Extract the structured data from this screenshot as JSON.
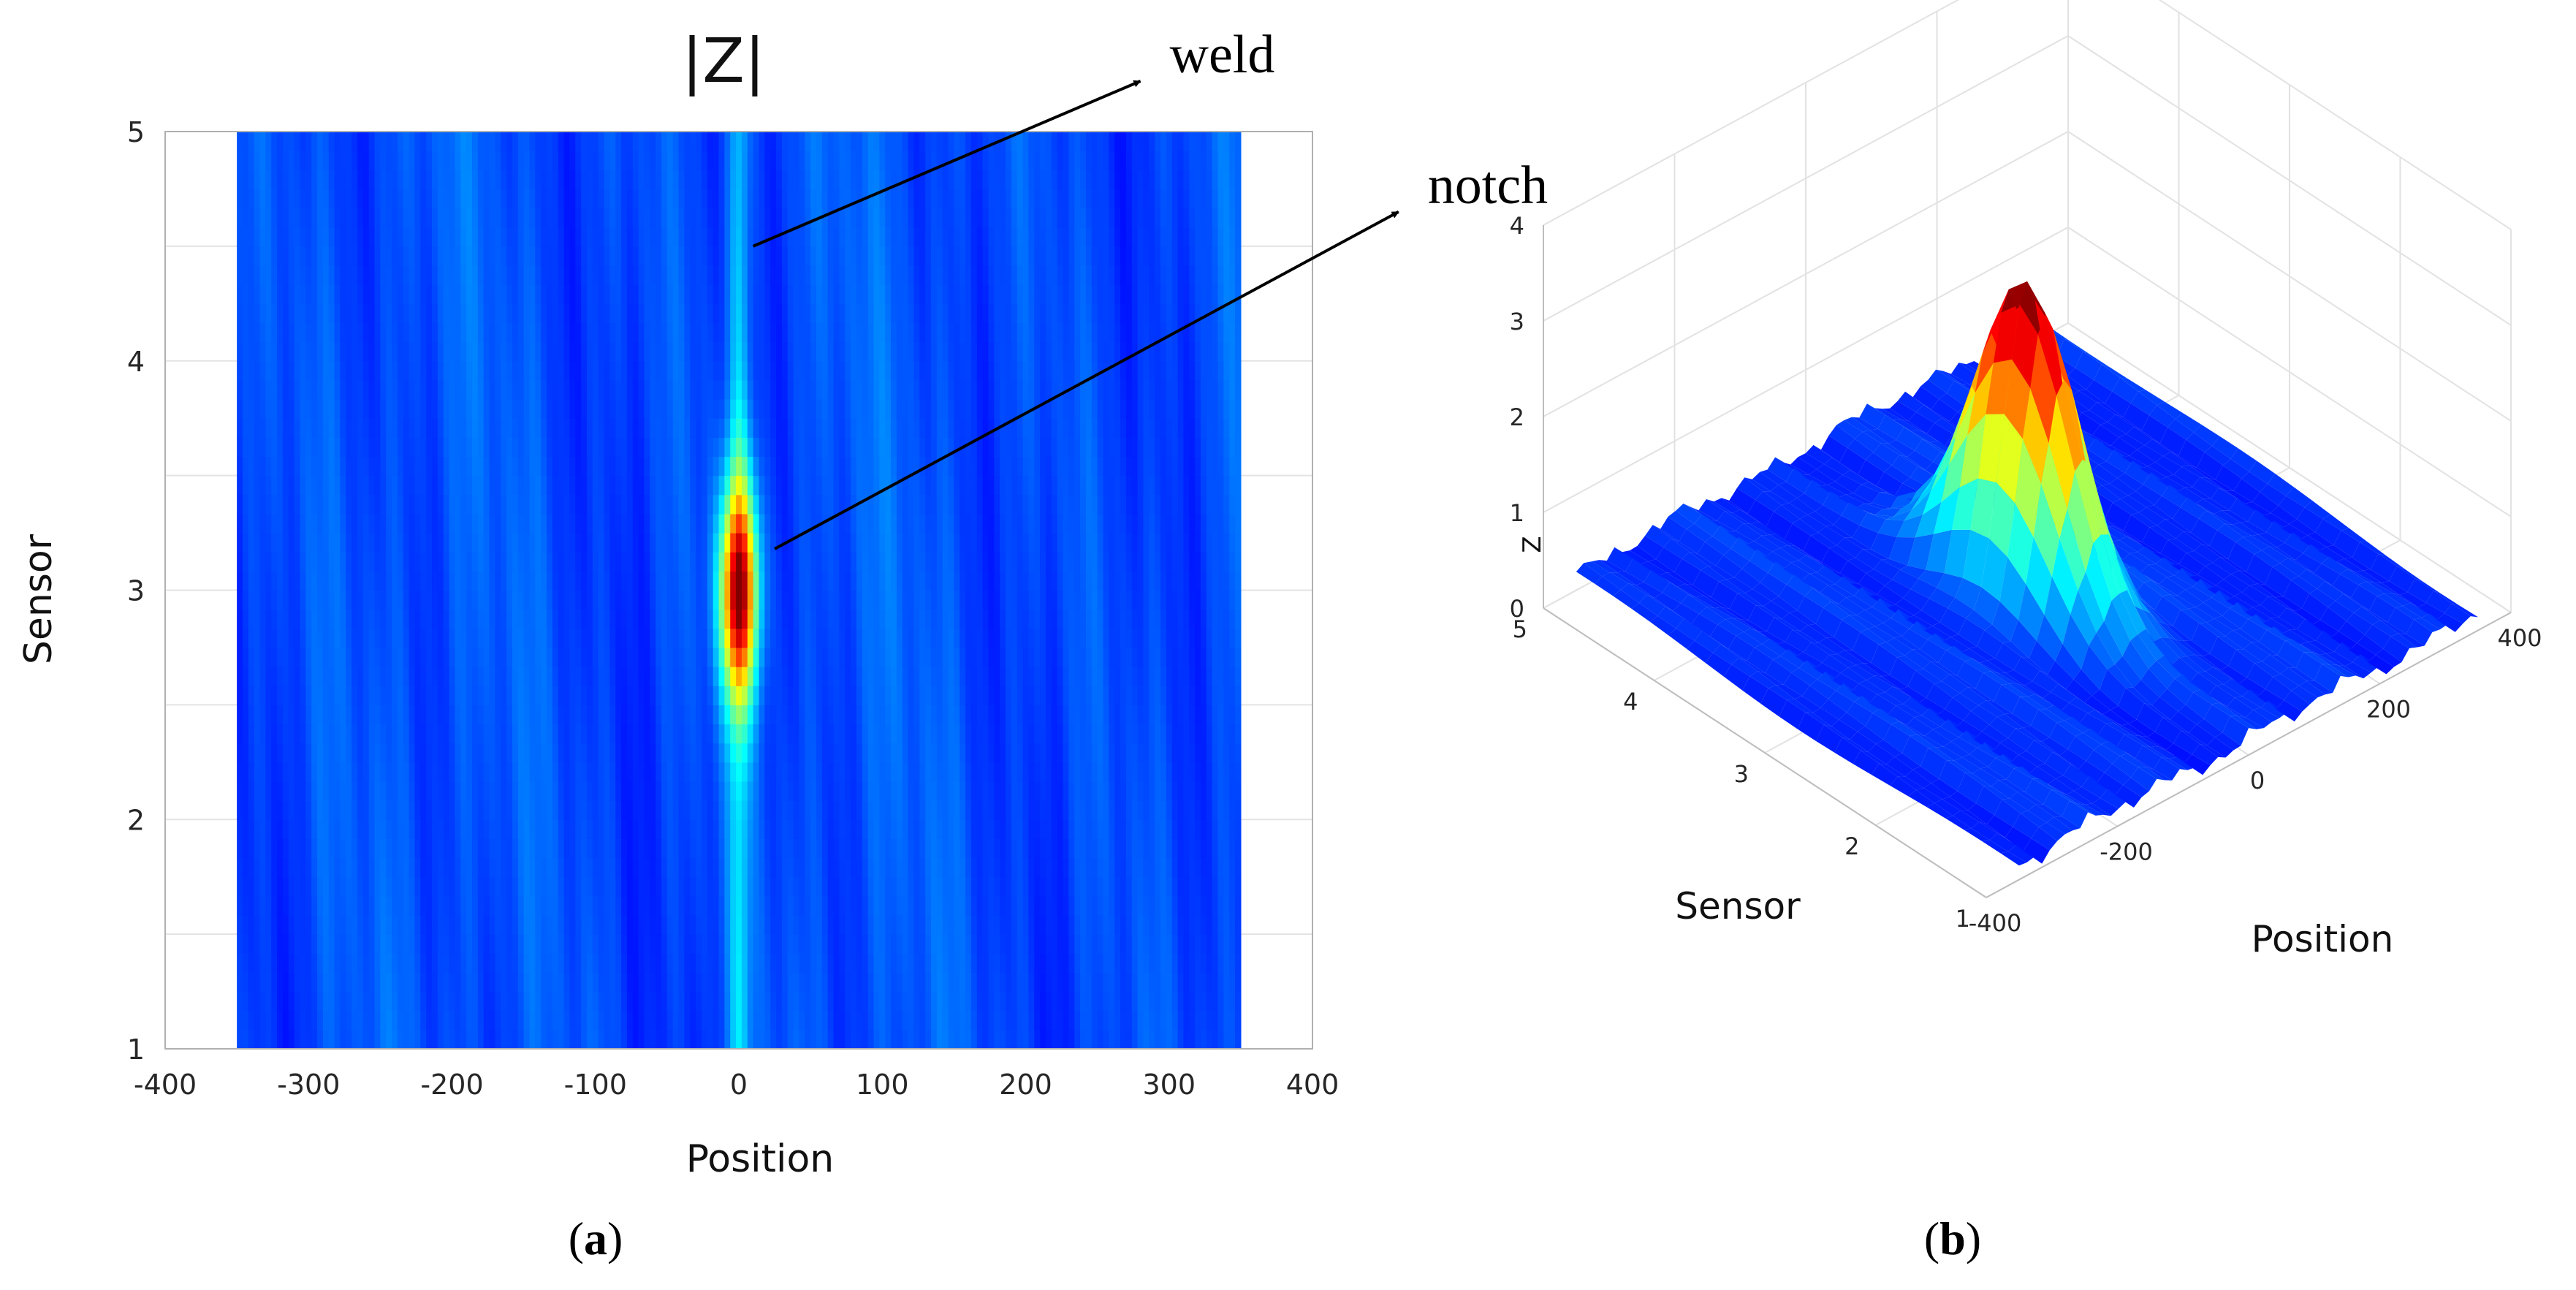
{
  "chart_data": [
    {
      "id": "a",
      "type": "heatmap",
      "title": "|Z|",
      "xlabel": "Position",
      "ylabel": "Sensor",
      "xlim": [
        -400,
        400
      ],
      "ylim": [
        1,
        5
      ],
      "x_extent": [
        -350,
        350
      ],
      "xticks": [
        -400,
        -300,
        -200,
        -100,
        0,
        100,
        200,
        300,
        400
      ],
      "yticks": [
        1,
        2,
        3,
        4,
        5
      ],
      "grid": true,
      "colormap": "jet",
      "peak": {
        "x": 0,
        "y": 3,
        "value": 3.2
      },
      "annotations": [
        {
          "label": "weld",
          "from": [
            10,
            4.5
          ],
          "to": [
            280,
            5.22
          ]
        },
        {
          "label": "notch",
          "from": [
            25,
            3.18
          ],
          "to": [
            460,
            4.65
          ]
        }
      ],
      "panel_label": {
        "open": "(",
        "letter": "a",
        "close": ")"
      }
    },
    {
      "id": "b",
      "type": "surface",
      "xlabel": "Position",
      "ylabel": "Sensor",
      "zlabel": "Z",
      "xlim": [
        -400,
        400
      ],
      "ylim": [
        1,
        5
      ],
      "zlim": [
        0,
        4
      ],
      "xticks": [
        -400,
        -200,
        0,
        200,
        400
      ],
      "yticks": [
        1,
        2,
        3,
        4,
        5
      ],
      "zticks": [
        0,
        1,
        2,
        3,
        4
      ],
      "grid": true,
      "colormap": "jet",
      "peak": {
        "x": 0,
        "y": 3,
        "value": 3.2
      },
      "panel_label": {
        "open": "(",
        "letter": "b",
        "close": ")"
      }
    }
  ]
}
